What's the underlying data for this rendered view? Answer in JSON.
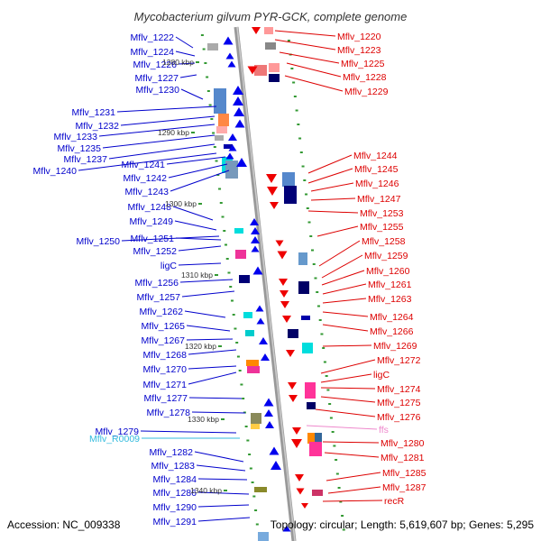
{
  "title": "Mycobacterium gilvum PYR-GCK, complete genome",
  "footer": {
    "accession": "Accession: NC_009338",
    "summary": "Topology: circular; Length: 5,619,607 bp; Genes: 5,295"
  },
  "colors": {
    "forward_label": "#0000cc",
    "reverse_label": "#dd0000",
    "rna_label": "#33bbdd",
    "ffs_label": "#ee88cc",
    "backbone": "#999999",
    "tick": "#339933"
  },
  "kbp_labels": [
    "1280 kbp",
    "1290 kbp",
    "1300 kbp",
    "1310 kbp",
    "1320 kbp",
    "1330 kbp",
    "1340 kbp"
  ],
  "left_labels": [
    {
      "text": "Mflv_1222"
    },
    {
      "text": "Mflv_1224"
    },
    {
      "text": "Mflv_1226"
    },
    {
      "text": "Mflv_1227"
    },
    {
      "text": "Mflv_1230"
    },
    {
      "text": "Mflv_1231"
    },
    {
      "text": "Mflv_1232"
    },
    {
      "text": "Mflv_1233"
    },
    {
      "text": "Mflv_1235"
    },
    {
      "text": "Mflv_1237"
    },
    {
      "text": "Mflv_1240"
    },
    {
      "text": "Mflv_1241"
    },
    {
      "text": "Mflv_1242"
    },
    {
      "text": "Mflv_1243"
    },
    {
      "text": "Mflv_1248"
    },
    {
      "text": "Mflv_1249"
    },
    {
      "text": "Mflv_1250"
    },
    {
      "text": "Mflv_1251"
    },
    {
      "text": "Mflv_1252"
    },
    {
      "text": "ligC"
    },
    {
      "text": "Mflv_1256"
    },
    {
      "text": "Mflv_1257"
    },
    {
      "text": "Mflv_1262"
    },
    {
      "text": "Mflv_1265"
    },
    {
      "text": "Mflv_1267"
    },
    {
      "text": "Mflv_1268"
    },
    {
      "text": "Mflv_1270"
    },
    {
      "text": "Mflv_1271"
    },
    {
      "text": "Mflv_1277"
    },
    {
      "text": "Mflv_1278"
    },
    {
      "text": "Mflv_1279"
    },
    {
      "text": "Mflv_R0009",
      "type": "rna"
    },
    {
      "text": "Mflv_1282"
    },
    {
      "text": "Mflv_1283"
    },
    {
      "text": "Mflv_1284"
    },
    {
      "text": "Mflv_1286"
    },
    {
      "text": "Mflv_1290"
    },
    {
      "text": "Mflv_1291"
    }
  ],
  "right_labels": [
    {
      "text": "Mflv_1220"
    },
    {
      "text": "Mflv_1223"
    },
    {
      "text": "Mflv_1225"
    },
    {
      "text": "Mflv_1228"
    },
    {
      "text": "Mflv_1229"
    },
    {
      "text": "Mflv_1244"
    },
    {
      "text": "Mflv_1245"
    },
    {
      "text": "Mflv_1246"
    },
    {
      "text": "Mflv_1247"
    },
    {
      "text": "Mflv_1253"
    },
    {
      "text": "Mflv_1255"
    },
    {
      "text": "Mflv_1258"
    },
    {
      "text": "Mflv_1259"
    },
    {
      "text": "Mflv_1260"
    },
    {
      "text": "Mflv_1261"
    },
    {
      "text": "Mflv_1263"
    },
    {
      "text": "Mflv_1264"
    },
    {
      "text": "Mflv_1266"
    },
    {
      "text": "Mflv_1269"
    },
    {
      "text": "Mflv_1272"
    },
    {
      "text": "ligC"
    },
    {
      "text": "Mflv_1274"
    },
    {
      "text": "Mflv_1275"
    },
    {
      "text": "Mflv_1276"
    },
    {
      "text": "ffs",
      "type": "ffs"
    },
    {
      "text": "Mflv_1280"
    },
    {
      "text": "Mflv_1281"
    },
    {
      "text": "Mflv_1285"
    },
    {
      "text": "Mflv_1287"
    },
    {
      "text": "recR"
    }
  ]
}
